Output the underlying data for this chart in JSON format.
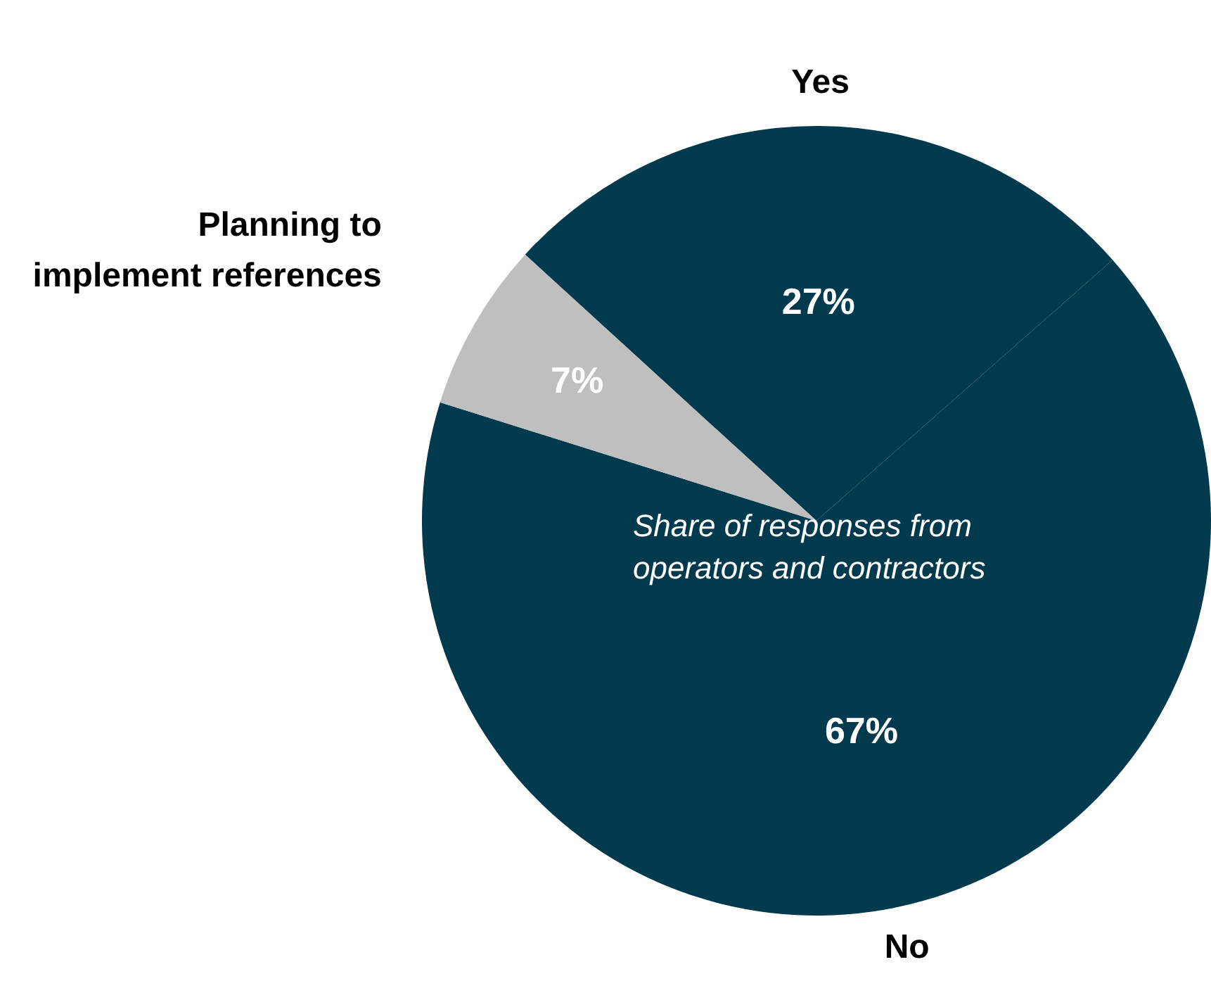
{
  "chart_data": {
    "type": "pie",
    "categories": [
      "Yes",
      "No",
      "Planning to implement references"
    ],
    "values": [
      27,
      67,
      7
    ],
    "colors": [
      "#023a4d",
      "#023a4d",
      "#bfbfbf"
    ],
    "value_labels": [
      "27%",
      "67%",
      "7%"
    ],
    "annotations": [
      "Share of responses from operators and contractors"
    ],
    "legend": false
  }
}
